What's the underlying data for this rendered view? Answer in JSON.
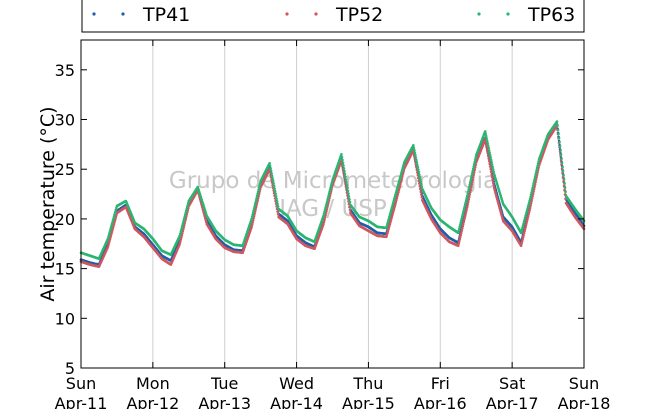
{
  "chart_data": {
    "type": "scatter",
    "ylabel": "Air temperature (°C)",
    "ylim": [
      5,
      38
    ],
    "yticks": [
      5,
      10,
      15,
      20,
      25,
      30,
      35
    ],
    "xlim": [
      "2021-04-11T00:00",
      "2021-04-18T00:00"
    ],
    "xticks": [
      {
        "day": "Sun",
        "date": "Apr-11"
      },
      {
        "day": "Mon",
        "date": "Apr-12"
      },
      {
        "day": "Tue",
        "date": "Apr-13"
      },
      {
        "day": "Wed",
        "date": "Apr-14"
      },
      {
        "day": "Thu",
        "date": "Apr-15"
      },
      {
        "day": "Fri",
        "date": "Apr-16"
      },
      {
        "day": "Sat",
        "date": "Apr-17"
      },
      {
        "day": "Sun",
        "date": "Apr-18"
      }
    ],
    "grid": "vertical",
    "legend_position": "top",
    "watermark": [
      "Grupo de Micrometeorologia",
      "IAG / USP"
    ],
    "series": [
      {
        "name": "TP41",
        "color": "#1f5fa8",
        "x": [
          "2021-04-11T00:00",
          "2021-04-11T03:00",
          "2021-04-11T06:00",
          "2021-04-11T09:00",
          "2021-04-11T12:00",
          "2021-04-11T15:00",
          "2021-04-11T18:00",
          "2021-04-11T21:00",
          "2021-04-12T00:00",
          "2021-04-12T03:00",
          "2021-04-12T06:00",
          "2021-04-12T09:00",
          "2021-04-12T12:00",
          "2021-04-12T15:00",
          "2021-04-12T18:00",
          "2021-04-12T21:00",
          "2021-04-13T00:00",
          "2021-04-13T03:00",
          "2021-04-13T06:00",
          "2021-04-13T09:00",
          "2021-04-13T12:00",
          "2021-04-13T15:00",
          "2021-04-13T18:00",
          "2021-04-13T21:00",
          "2021-04-14T00:00",
          "2021-04-14T03:00",
          "2021-04-14T06:00",
          "2021-04-14T09:00",
          "2021-04-14T12:00",
          "2021-04-14T15:00",
          "2021-04-14T18:00",
          "2021-04-14T21:00",
          "2021-04-15T00:00",
          "2021-04-15T03:00",
          "2021-04-15T06:00",
          "2021-04-15T09:00",
          "2021-04-15T12:00",
          "2021-04-15T15:00",
          "2021-04-15T18:00",
          "2021-04-15T21:00",
          "2021-04-16T00:00",
          "2021-04-16T03:00",
          "2021-04-16T06:00",
          "2021-04-16T09:00",
          "2021-04-16T12:00",
          "2021-04-16T15:00",
          "2021-04-16T18:00",
          "2021-04-16T21:00",
          "2021-04-17T00:00",
          "2021-04-17T03:00",
          "2021-04-17T06:00",
          "2021-04-17T09:00",
          "2021-04-17T12:00",
          "2021-04-17T15:00",
          "2021-04-17T18:00",
          "2021-04-17T21:00",
          "2021-04-18T00:00"
        ],
        "y": [
          15.9,
          15.6,
          15.4,
          17.5,
          20.8,
          21.4,
          19.2,
          18.5,
          17.4,
          16.3,
          15.8,
          17.8,
          21.5,
          23.0,
          19.8,
          18.3,
          17.4,
          16.9,
          16.8,
          19.5,
          23.4,
          25.2,
          20.5,
          19.8,
          18.3,
          17.6,
          17.2,
          19.8,
          23.6,
          26.0,
          20.9,
          19.6,
          19.2,
          18.6,
          18.5,
          21.8,
          25.3,
          27.0,
          22.3,
          20.4,
          19.0,
          18.1,
          17.6,
          21.5,
          25.9,
          28.1,
          23.5,
          20.2,
          19.2,
          17.6,
          21.4,
          25.6,
          28.2,
          29.5,
          22.0,
          20.6,
          19.3
        ]
      },
      {
        "name": "TP52",
        "color": "#d0575f",
        "x": [
          "2021-04-11T00:00",
          "2021-04-11T03:00",
          "2021-04-11T06:00",
          "2021-04-11T09:00",
          "2021-04-11T12:00",
          "2021-04-11T15:00",
          "2021-04-11T18:00",
          "2021-04-11T21:00",
          "2021-04-12T00:00",
          "2021-04-12T03:00",
          "2021-04-12T06:00",
          "2021-04-12T09:00",
          "2021-04-12T12:00",
          "2021-04-12T15:00",
          "2021-04-12T18:00",
          "2021-04-12T21:00",
          "2021-04-13T00:00",
          "2021-04-13T03:00",
          "2021-04-13T06:00",
          "2021-04-13T09:00",
          "2021-04-13T12:00",
          "2021-04-13T15:00",
          "2021-04-13T18:00",
          "2021-04-13T21:00",
          "2021-04-14T00:00",
          "2021-04-14T03:00",
          "2021-04-14T06:00",
          "2021-04-14T09:00",
          "2021-04-14T12:00",
          "2021-04-14T15:00",
          "2021-04-14T18:00",
          "2021-04-14T21:00",
          "2021-04-15T00:00",
          "2021-04-15T03:00",
          "2021-04-15T06:00",
          "2021-04-15T09:00",
          "2021-04-15T12:00",
          "2021-04-15T15:00",
          "2021-04-15T18:00",
          "2021-04-15T21:00",
          "2021-04-16T00:00",
          "2021-04-16T03:00",
          "2021-04-16T06:00",
          "2021-04-16T09:00",
          "2021-04-16T12:00",
          "2021-04-16T15:00",
          "2021-04-16T18:00",
          "2021-04-16T21:00",
          "2021-04-17T00:00",
          "2021-04-17T03:00",
          "2021-04-17T06:00",
          "2021-04-17T09:00",
          "2021-04-17T12:00",
          "2021-04-17T15:00",
          "2021-04-17T18:00",
          "2021-04-17T21:00",
          "2021-04-18T00:00"
        ],
        "y": [
          15.7,
          15.4,
          15.2,
          17.2,
          20.6,
          21.2,
          19.0,
          18.2,
          17.1,
          16.0,
          15.4,
          17.5,
          21.3,
          22.9,
          19.5,
          18.0,
          17.1,
          16.7,
          16.6,
          19.2,
          23.2,
          25.0,
          20.2,
          19.5,
          18.0,
          17.3,
          17.0,
          19.5,
          23.4,
          25.9,
          20.6,
          19.3,
          18.8,
          18.3,
          18.2,
          21.5,
          25.1,
          26.9,
          21.9,
          20.0,
          18.6,
          17.7,
          17.3,
          21.2,
          25.7,
          28.0,
          23.1,
          19.8,
          18.8,
          17.3,
          21.1,
          25.4,
          28.0,
          29.4,
          21.6,
          20.2,
          19.0
        ]
      },
      {
        "name": "TP63",
        "color": "#2bb572",
        "x": [
          "2021-04-11T00:00",
          "2021-04-11T03:00",
          "2021-04-11T06:00",
          "2021-04-11T09:00",
          "2021-04-11T12:00",
          "2021-04-11T15:00",
          "2021-04-11T18:00",
          "2021-04-11T21:00",
          "2021-04-12T00:00",
          "2021-04-12T03:00",
          "2021-04-12T06:00",
          "2021-04-12T09:00",
          "2021-04-12T12:00",
          "2021-04-12T15:00",
          "2021-04-12T18:00",
          "2021-04-12T21:00",
          "2021-04-13T00:00",
          "2021-04-13T03:00",
          "2021-04-13T06:00",
          "2021-04-13T09:00",
          "2021-04-13T12:00",
          "2021-04-13T15:00",
          "2021-04-13T18:00",
          "2021-04-13T21:00",
          "2021-04-14T00:00",
          "2021-04-14T03:00",
          "2021-04-14T06:00",
          "2021-04-14T09:00",
          "2021-04-14T12:00",
          "2021-04-14T15:00",
          "2021-04-14T18:00",
          "2021-04-14T21:00",
          "2021-04-15T00:00",
          "2021-04-15T03:00",
          "2021-04-15T06:00",
          "2021-04-15T09:00",
          "2021-04-15T12:00",
          "2021-04-15T15:00",
          "2021-04-15T18:00",
          "2021-04-15T21:00",
          "2021-04-16T00:00",
          "2021-04-16T03:00",
          "2021-04-16T06:00",
          "2021-04-16T09:00",
          "2021-04-16T12:00",
          "2021-04-16T15:00",
          "2021-04-16T18:00",
          "2021-04-16T21:00",
          "2021-04-17T00:00",
          "2021-04-17T03:00",
          "2021-04-17T06:00",
          "2021-04-17T09:00",
          "2021-04-17T12:00",
          "2021-04-17T15:00",
          "2021-04-17T18:00",
          "2021-04-17T21:00",
          "2021-04-18T00:00"
        ],
        "y": [
          16.6,
          16.3,
          16.0,
          18.0,
          21.3,
          21.8,
          19.6,
          19.0,
          18.0,
          16.8,
          16.4,
          18.3,
          21.8,
          23.2,
          20.3,
          18.8,
          17.9,
          17.4,
          17.3,
          20.0,
          23.8,
          25.6,
          21.0,
          20.3,
          18.8,
          18.1,
          17.7,
          20.3,
          23.9,
          26.5,
          21.4,
          20.2,
          19.8,
          19.2,
          19.1,
          22.4,
          25.7,
          27.4,
          23.0,
          21.1,
          19.9,
          19.2,
          18.6,
          22.3,
          26.4,
          28.8,
          24.5,
          21.5,
          20.2,
          18.6,
          22.0,
          26.0,
          28.5,
          29.8,
          22.3,
          21.0,
          19.8
        ]
      }
    ]
  }
}
